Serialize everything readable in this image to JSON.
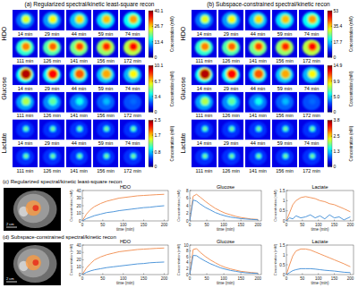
{
  "figure": {
    "panel_c_title": "(c) Regularized spectral/kinetic least-square recon",
    "panel_d_title": "(d) Subspace-constrained spectral/kinetic recon",
    "scale_bar_label": "2 cm"
  },
  "chart_data": [
    {
      "type": "heatmap",
      "title": "(a) Regularized spectral/kinetic least-square recon",
      "time_labels": [
        "14 min",
        "29 min",
        "44 min",
        "59 min",
        "74 min",
        "111 min",
        "126 min",
        "141 min",
        "156 min",
        "172 min"
      ],
      "colorbar_label": "Concentration (mM)",
      "rows": [
        {
          "name": "HDO",
          "colorbar": {
            "range": [
              0,
              40.1
            ],
            "ticks": [
              0,
              13.4,
              26.7,
              40.1
            ]
          }
        },
        {
          "name": "Glucose",
          "colorbar": {
            "range": [
              0,
              10.1
            ],
            "ticks": [
              0,
              3.4,
              6.7,
              10.1
            ]
          }
        },
        {
          "name": "Lactate",
          "colorbar": {
            "range": [
              0,
              2.5
            ],
            "ticks": [
              0,
              0.8,
              1.7,
              2.5
            ]
          }
        }
      ]
    },
    {
      "type": "heatmap",
      "title": "(b) Subspace-constrained spectral/kinetic recon",
      "time_labels": [
        "14 min",
        "29 min",
        "44 min",
        "59 min",
        "74 min",
        "111 min",
        "126 min",
        "141 min",
        "156 min",
        "172 min"
      ],
      "colorbar_label": "Concentration (mM)",
      "rows": [
        {
          "name": "HDO",
          "colorbar": {
            "range": [
              0,
              53
            ],
            "ticks": [
              0,
              17.7,
              35.4,
              53
            ]
          }
        },
        {
          "name": "Glucose",
          "colorbar": {
            "range": [
              0,
              14.9
            ],
            "ticks": [
              0,
              {
                "value": 5,
                "label": "5.0"
              },
              9.9,
              14.9
            ]
          }
        },
        {
          "name": "Lactate",
          "colorbar": {
            "range": [
              0,
              3.8
            ],
            "ticks": [
              0,
              1.3,
              2.5,
              3.8
            ]
          }
        }
      ]
    },
    {
      "type": "line",
      "title": "HDO",
      "xlabel": "time (min)",
      "ylabel": "Concentration (mM)",
      "x": [
        0,
        10,
        20,
        30,
        45,
        60,
        75,
        90,
        105,
        120,
        135,
        150,
        165,
        180,
        200
      ],
      "xlim": [
        0,
        210
      ],
      "xticks": [
        0,
        50,
        100,
        150,
        200
      ],
      "ylim": [
        0,
        40
      ],
      "yticks": [
        0,
        10,
        20,
        30,
        40
      ],
      "series": [
        {
          "color": "#f08a4b",
          "values": [
            0,
            9,
            15,
            19,
            23,
            26,
            28,
            30,
            31,
            32,
            33,
            33.5,
            34,
            34.5,
            35
          ]
        },
        {
          "color": "#3c8bd6",
          "values": [
            0,
            3,
            5,
            7,
            9,
            11,
            12,
            13.5,
            14.5,
            15.5,
            16.5,
            17.5,
            18,
            19,
            20
          ]
        }
      ]
    },
    {
      "type": "line",
      "title": "Glucose",
      "xlabel": "time (min)",
      "ylabel": "Concentration (mM)",
      "x": [
        0,
        10,
        20,
        30,
        45,
        60,
        75,
        90,
        105,
        120,
        135,
        150,
        165,
        180,
        200
      ],
      "xlim": [
        0,
        210
      ],
      "xticks": [
        0,
        50,
        100,
        150,
        200
      ],
      "ylim": [
        0,
        8
      ],
      "yticks": [
        0,
        2,
        4,
        6,
        8
      ],
      "series": [
        {
          "color": "#f08a4b",
          "values": [
            0,
            6.5,
            7,
            6.3,
            5.2,
            4.2,
            3.3,
            2.6,
            2,
            1.6,
            1.2,
            0.9,
            0.7,
            0.5,
            0.4
          ]
        },
        {
          "color": "#3c8bd6",
          "values": [
            0,
            5.5,
            5.2,
            4.5,
            3.6,
            2.9,
            2.2,
            1.7,
            1.3,
            1,
            0.8,
            0.6,
            0.5,
            0.4,
            0.3
          ]
        }
      ]
    },
    {
      "type": "line",
      "title": "Lactate",
      "xlabel": "time (min)",
      "ylabel": "Concentration (mM)",
      "x": [
        0,
        10,
        20,
        30,
        45,
        60,
        75,
        90,
        105,
        120,
        135,
        150,
        165,
        180,
        200
      ],
      "xlim": [
        0,
        210
      ],
      "xticks": [
        0,
        50,
        100,
        150,
        200
      ],
      "ylim": [
        0,
        1.5
      ],
      "yticks": [
        0,
        0.5,
        1,
        1.5
      ],
      "series": [
        {
          "color": "#f08a4b",
          "values": [
            0,
            0.4,
            0.8,
            1,
            1.15,
            1.2,
            1.15,
            1.1,
            1,
            0.95,
            0.85,
            0.8,
            0.7,
            0.6,
            0.45
          ]
        },
        {
          "color": "#3c8bd6",
          "values": [
            0,
            0.15,
            0.1,
            0.25,
            0.15,
            0.2,
            0.3,
            0.15,
            0.25,
            0.1,
            0.3,
            0.15,
            0.2,
            0.05,
            0.2
          ]
        }
      ]
    },
    {
      "type": "line",
      "title": "HDO",
      "xlabel": "time (min)",
      "ylabel": "Concentration (mM)",
      "x": [
        0,
        10,
        20,
        30,
        45,
        60,
        75,
        90,
        105,
        120,
        135,
        150,
        165,
        180,
        200
      ],
      "xlim": [
        0,
        210
      ],
      "xticks": [
        0,
        50,
        100,
        150,
        200
      ],
      "ylim": [
        0,
        40
      ],
      "yticks": [
        0,
        10,
        20,
        30,
        40
      ],
      "series": [
        {
          "color": "#f08a4b",
          "values": [
            0,
            9,
            15,
            20,
            24,
            27,
            29,
            31,
            32,
            33,
            34,
            34.5,
            35,
            35.5,
            36
          ]
        },
        {
          "color": "#3c8bd6",
          "values": [
            0,
            3,
            5,
            6.5,
            8,
            9.5,
            10.5,
            11.5,
            12.5,
            13.5,
            14.5,
            15,
            16,
            16.5,
            17
          ]
        }
      ]
    },
    {
      "type": "line",
      "title": "Glucose",
      "xlabel": "time (min)",
      "ylabel": "Concentration (mM)",
      "x": [
        0,
        10,
        20,
        30,
        45,
        60,
        75,
        90,
        105,
        120,
        135,
        150,
        165,
        180,
        200
      ],
      "xlim": [
        0,
        210
      ],
      "xticks": [
        0,
        50,
        100,
        150,
        200
      ],
      "ylim": [
        0,
        10
      ],
      "yticks": [
        0,
        2,
        4,
        6,
        8,
        10
      ],
      "series": [
        {
          "color": "#f08a4b",
          "values": [
            0,
            8.5,
            8.8,
            7.6,
            6.2,
            5,
            4,
            3.1,
            2.4,
            1.9,
            1.5,
            1.1,
            0.9,
            0.7,
            0.5
          ]
        },
        {
          "color": "#3c8bd6",
          "values": [
            0,
            6.5,
            6.4,
            5.6,
            4.6,
            3.7,
            3,
            2.3,
            1.8,
            1.4,
            1.1,
            0.8,
            0.6,
            0.5,
            0.4
          ]
        }
      ]
    },
    {
      "type": "line",
      "title": "Lactate",
      "xlabel": "time (min)",
      "ylabel": "Concentration (mM)",
      "x": [
        0,
        10,
        20,
        30,
        45,
        60,
        75,
        90,
        105,
        120,
        135,
        150,
        165,
        180,
        200
      ],
      "xlim": [
        0,
        210
      ],
      "xticks": [
        0,
        50,
        100,
        150,
        200
      ],
      "ylim": [
        0,
        1.5
      ],
      "yticks": [
        0,
        0.5,
        1,
        1.5
      ],
      "series": [
        {
          "color": "#f08a4b",
          "values": [
            0,
            0.5,
            0.95,
            1.2,
            1.3,
            1.3,
            1.25,
            1.15,
            1.05,
            0.95,
            0.85,
            0.75,
            0.65,
            0.55,
            0.4
          ]
        },
        {
          "color": "#3c8bd6",
          "values": [
            0,
            0.1,
            0.2,
            0.25,
            0.3,
            0.3,
            0.3,
            0.28,
            0.25,
            0.22,
            0.2,
            0.18,
            0.15,
            0.12,
            0.1
          ]
        }
      ]
    }
  ]
}
